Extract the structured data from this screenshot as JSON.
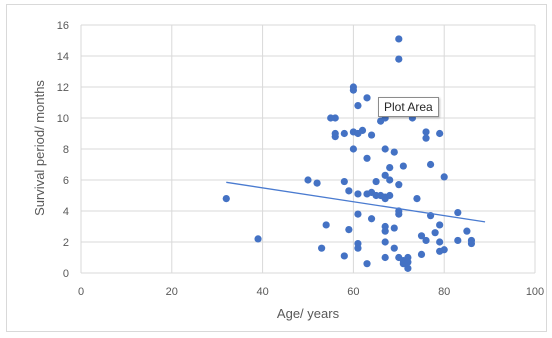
{
  "chart_data": {
    "type": "scatter",
    "title": "",
    "xlabel": "Age/ years",
    "ylabel": "Survival period/ months",
    "xlim": [
      0,
      100
    ],
    "ylim": [
      0,
      16
    ],
    "xticks": [
      "0",
      "20",
      "40",
      "60",
      "80",
      "100"
    ],
    "yticks": [
      "0",
      "2",
      "4",
      "6",
      "8",
      "10",
      "12",
      "14",
      "16"
    ],
    "grid": true,
    "marker_color": "#4472c4",
    "trendline": {
      "x": [
        32,
        89
      ],
      "y": [
        5.85,
        3.3
      ],
      "color": "#4a7bd0"
    },
    "points": [
      [
        32,
        4.8
      ],
      [
        39,
        2.2
      ],
      [
        50,
        6.0
      ],
      [
        52,
        5.8
      ],
      [
        53,
        1.6
      ],
      [
        54,
        3.1
      ],
      [
        55,
        10.0
      ],
      [
        56,
        10.0
      ],
      [
        56,
        9.0
      ],
      [
        56,
        8.8
      ],
      [
        58,
        9.0
      ],
      [
        58,
        5.9
      ],
      [
        58,
        1.1
      ],
      [
        59,
        5.3
      ],
      [
        59,
        2.8
      ],
      [
        60,
        12.0
      ],
      [
        60,
        11.8
      ],
      [
        60,
        9.1
      ],
      [
        60,
        8.0
      ],
      [
        61,
        10.8
      ],
      [
        61,
        9.0
      ],
      [
        61,
        5.1
      ],
      [
        61,
        3.8
      ],
      [
        61,
        1.9
      ],
      [
        61,
        1.6
      ],
      [
        62,
        9.2
      ],
      [
        63,
        11.3
      ],
      [
        63,
        7.4
      ],
      [
        63,
        5.1
      ],
      [
        63,
        0.6
      ],
      [
        64,
        8.9
      ],
      [
        64,
        5.2
      ],
      [
        64,
        3.5
      ],
      [
        65,
        5.0
      ],
      [
        65,
        5.9
      ],
      [
        66,
        9.8
      ],
      [
        66,
        5.0
      ],
      [
        67,
        10.0
      ],
      [
        67,
        8.0
      ],
      [
        67,
        6.3
      ],
      [
        67,
        4.9
      ],
      [
        67,
        4.8
      ],
      [
        67,
        3.0
      ],
      [
        67,
        2.7
      ],
      [
        67,
        2.0
      ],
      [
        67,
        1.0
      ],
      [
        68,
        6.0
      ],
      [
        68,
        5.0
      ],
      [
        68,
        6.8
      ],
      [
        69,
        7.8
      ],
      [
        69,
        2.9
      ],
      [
        69,
        1.6
      ],
      [
        70,
        15.1
      ],
      [
        70,
        13.8
      ],
      [
        70,
        5.7
      ],
      [
        70,
        4.0
      ],
      [
        70,
        3.8
      ],
      [
        70,
        1.0
      ],
      [
        71,
        6.9
      ],
      [
        71,
        0.8
      ],
      [
        71,
        0.6
      ],
      [
        72,
        1.0
      ],
      [
        72,
        0.7
      ],
      [
        72,
        0.3
      ],
      [
        73,
        10.0
      ],
      [
        74,
        4.8
      ],
      [
        75,
        2.4
      ],
      [
        75,
        1.2
      ],
      [
        76,
        9.1
      ],
      [
        76,
        8.7
      ],
      [
        76,
        2.1
      ],
      [
        77,
        7.0
      ],
      [
        77,
        3.7
      ],
      [
        78,
        2.6
      ],
      [
        79,
        9.0
      ],
      [
        79,
        3.1
      ],
      [
        79,
        2.0
      ],
      [
        79,
        1.4
      ],
      [
        80,
        6.2
      ],
      [
        80,
        1.5
      ],
      [
        83,
        3.9
      ],
      [
        83,
        2.1
      ],
      [
        85,
        2.7
      ],
      [
        86,
        2.1
      ],
      [
        86,
        1.9
      ]
    ]
  },
  "tooltip": {
    "text": "Plot Area"
  }
}
